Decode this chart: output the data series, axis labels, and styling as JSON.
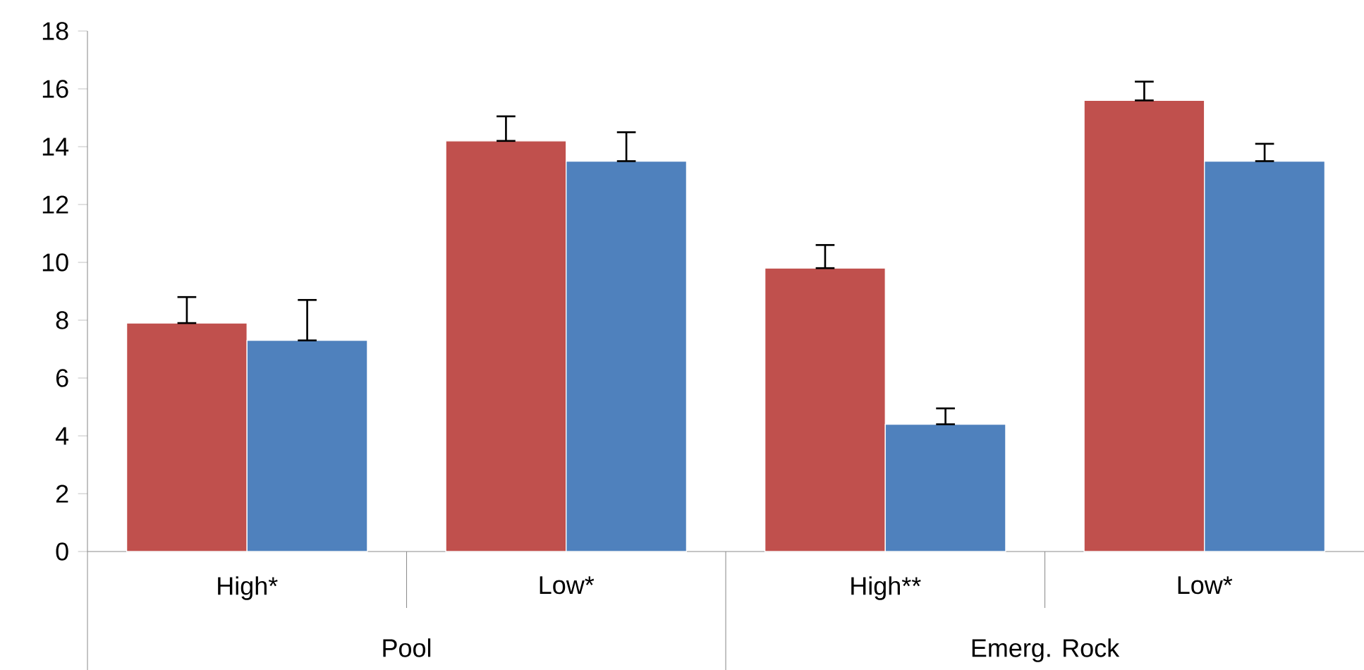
{
  "chart_data": {
    "type": "bar",
    "categories": [
      "High*",
      "Low*",
      "High**",
      "Low*"
    ],
    "series": [
      {
        "color": "#c0504d",
        "values": [
          7.9,
          14.2,
          9.8,
          15.6
        ],
        "errors": [
          [
            7.9,
            8.8
          ],
          [
            14.2,
            15.05
          ],
          [
            9.8,
            10.6
          ],
          [
            15.6,
            16.25
          ]
        ]
      },
      {
        "color": "#4f81bd",
        "values": [
          7.3,
          13.5,
          4.4,
          13.5
        ],
        "errors": [
          [
            7.3,
            8.7
          ],
          [
            13.5,
            14.5
          ],
          [
            4.4,
            4.95
          ],
          [
            13.5,
            14.1
          ]
        ]
      }
    ],
    "ylim": [
      0,
      18
    ],
    "yticks": [
      0,
      2,
      4,
      6,
      8,
      10,
      12,
      14,
      16,
      18
    ],
    "annotations": [
      "Pool",
      "Emerg. Rock"
    ]
  }
}
